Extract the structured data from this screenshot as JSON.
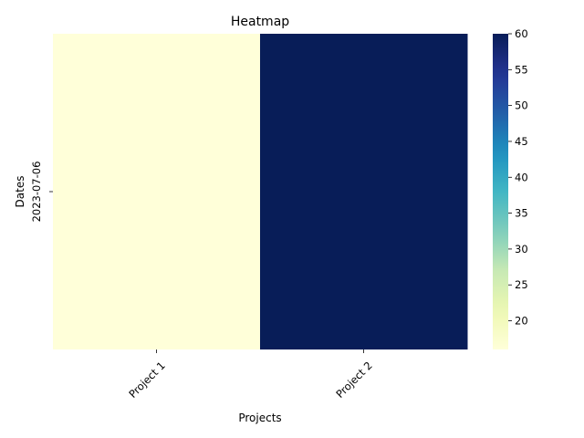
{
  "chart_data": {
    "type": "heatmap",
    "title": "Heatmap",
    "xlabel": "Projects",
    "ylabel": "Dates",
    "x_categories": [
      "Project 1",
      "Project 2"
    ],
    "y_categories": [
      "2023-07-06"
    ],
    "values": [
      [
        16,
        60
      ]
    ],
    "colorbar": {
      "colormap": "YlGnBu",
      "range": [
        16,
        60
      ],
      "ticks": [
        20,
        25,
        30,
        35,
        40,
        45,
        50,
        55,
        60
      ]
    },
    "grid": false,
    "x_tick_rotation_deg": 45,
    "y_tick_rotation_deg": 90
  }
}
